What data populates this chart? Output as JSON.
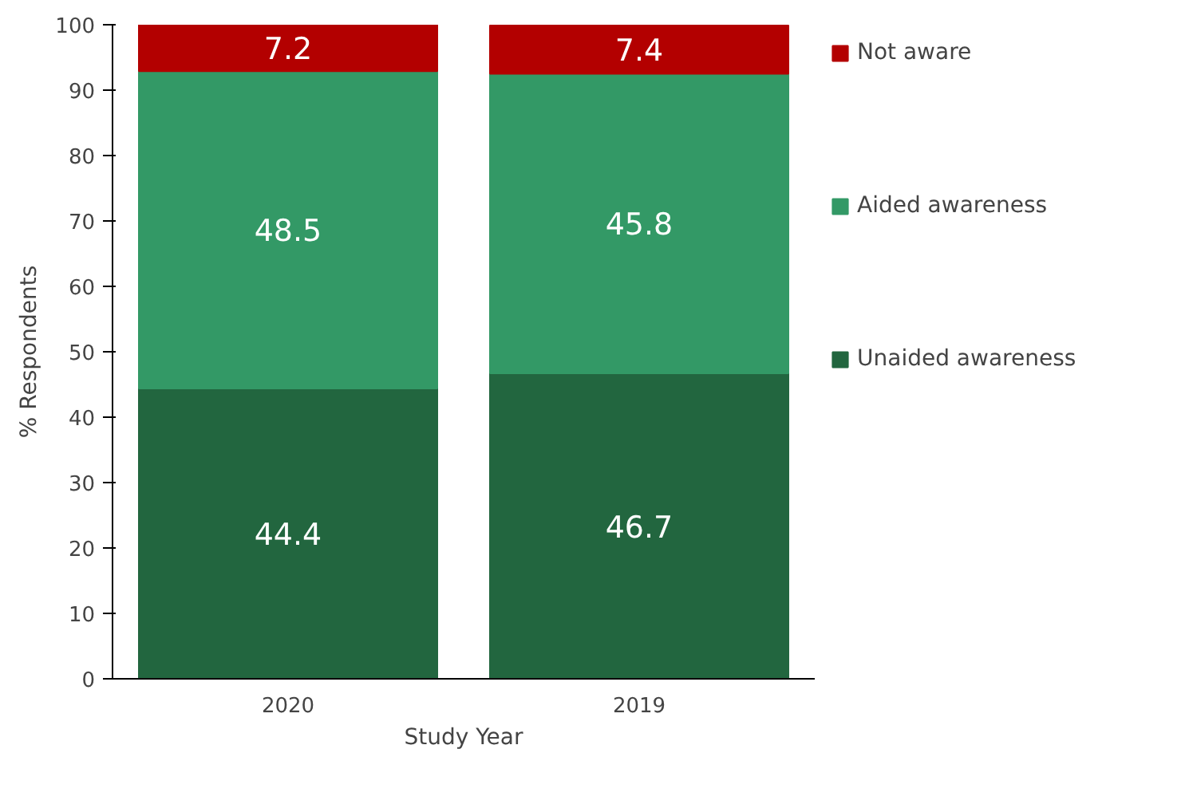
{
  "chart_data": {
    "type": "bar",
    "stacked": true,
    "xlabel": "Study Year",
    "ylabel": "% Respondents",
    "categories": [
      "2020",
      "2019"
    ],
    "series": [
      {
        "name": "Unaided awareness",
        "color": "#22663f",
        "values": [
          44.4,
          46.7
        ]
      },
      {
        "name": "Aided awareness",
        "color": "#339966",
        "values": [
          48.5,
          45.8
        ]
      },
      {
        "name": "Not aware",
        "color": "#b30000",
        "values": [
          7.2,
          7.4
        ]
      }
    ],
    "ylim": [
      0,
      100
    ],
    "yticks": [
      0,
      10,
      20,
      30,
      40,
      50,
      60,
      70,
      80,
      90,
      100
    ],
    "grid": false,
    "legend": "right",
    "data_labels": true
  }
}
